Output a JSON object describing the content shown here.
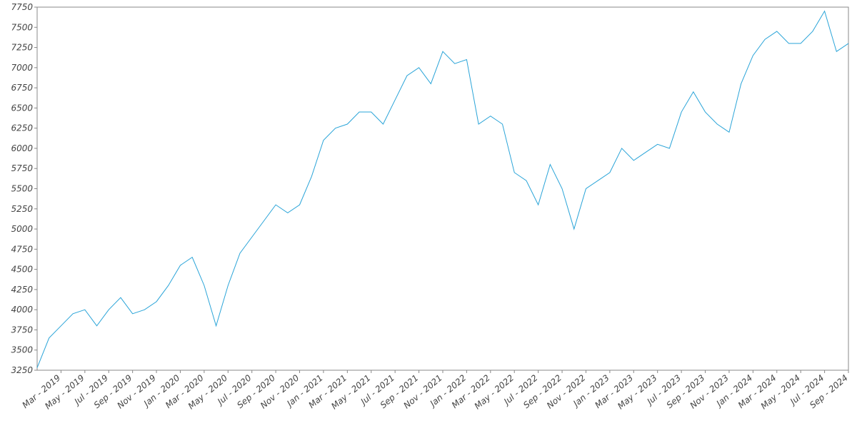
{
  "chart_data": {
    "type": "line",
    "x": [
      "2019-01",
      "2019-02",
      "2019-03",
      "2019-04",
      "2019-05",
      "2019-06",
      "2019-07",
      "2019-08",
      "2019-09",
      "2019-10",
      "2019-11",
      "2019-12",
      "2020-01",
      "2020-02",
      "2020-03",
      "2020-04",
      "2020-05",
      "2020-06",
      "2020-07",
      "2020-08",
      "2020-09",
      "2020-10",
      "2020-11",
      "2020-12",
      "2021-01",
      "2021-02",
      "2021-03",
      "2021-04",
      "2021-05",
      "2021-06",
      "2021-07",
      "2021-08",
      "2021-09",
      "2021-10",
      "2021-11",
      "2021-12",
      "2022-01",
      "2022-02",
      "2022-03",
      "2022-04",
      "2022-05",
      "2022-06",
      "2022-07",
      "2022-08",
      "2022-09",
      "2022-10",
      "2022-11",
      "2022-12",
      "2023-01",
      "2023-02",
      "2023-03",
      "2023-04",
      "2023-05",
      "2023-06",
      "2023-07",
      "2023-08",
      "2023-09",
      "2023-10",
      "2023-11",
      "2023-12",
      "2024-01",
      "2024-02",
      "2024-03",
      "2024-04",
      "2024-05",
      "2024-06",
      "2024-07",
      "2024-08",
      "2024-09"
    ],
    "series": [
      {
        "color": "#2aa4d8",
        "values": [
          3280,
          3650,
          3800,
          3950,
          4000,
          3800,
          4000,
          4150,
          3950,
          4000,
          4100,
          4300,
          4550,
          4650,
          4300,
          3800,
          4300,
          4700,
          4900,
          5100,
          5300,
          5200,
          5300,
          5650,
          6100,
          6250,
          6300,
          6450,
          6450,
          6300,
          6600,
          6900,
          7000,
          6800,
          7200,
          7050,
          7100,
          6300,
          6400,
          6300,
          5700,
          5600,
          5300,
          5800,
          5500,
          5000,
          5500,
          5600,
          5700,
          6000,
          5850,
          5950,
          6050,
          6000,
          6450,
          6700,
          6450,
          6300,
          6200,
          6800,
          7150,
          7350,
          7450,
          7300,
          7300,
          7450,
          7700,
          7200,
          7300
        ]
      }
    ],
    "xlim": [
      "2019-01",
      "2024-09"
    ],
    "xticks": [
      {
        "value": "2019-03",
        "label": "Mar - 2019"
      },
      {
        "value": "2019-05",
        "label": "May - 2019"
      },
      {
        "value": "2019-07",
        "label": "Jul - 2019"
      },
      {
        "value": "2019-09",
        "label": "Sep - 2019"
      },
      {
        "value": "2019-11",
        "label": "Nov - 2019"
      },
      {
        "value": "2020-01",
        "label": "Jan - 2020"
      },
      {
        "value": "2020-03",
        "label": "Mar - 2020"
      },
      {
        "value": "2020-05",
        "label": "May - 2020"
      },
      {
        "value": "2020-07",
        "label": "Jul - 2020"
      },
      {
        "value": "2020-09",
        "label": "Sep - 2020"
      },
      {
        "value": "2020-11",
        "label": "Nov - 2020"
      },
      {
        "value": "2021-01",
        "label": "Jan - 2021"
      },
      {
        "value": "2021-03",
        "label": "Mar - 2021"
      },
      {
        "value": "2021-05",
        "label": "May - 2021"
      },
      {
        "value": "2021-07",
        "label": "Jul - 2021"
      },
      {
        "value": "2021-09",
        "label": "Sep - 2021"
      },
      {
        "value": "2021-11",
        "label": "Nov - 2021"
      },
      {
        "value": "2022-01",
        "label": "Jan - 2022"
      },
      {
        "value": "2022-03",
        "label": "Mar - 2022"
      },
      {
        "value": "2022-05",
        "label": "May - 2022"
      },
      {
        "value": "2022-07",
        "label": "Jul - 2022"
      },
      {
        "value": "2022-09",
        "label": "Sep - 2022"
      },
      {
        "value": "2022-11",
        "label": "Nov - 2022"
      },
      {
        "value": "2023-01",
        "label": "Jan - 2023"
      },
      {
        "value": "2023-03",
        "label": "Mar - 2023"
      },
      {
        "value": "2023-05",
        "label": "May - 2023"
      },
      {
        "value": "2023-07",
        "label": "Jul - 2023"
      },
      {
        "value": "2023-09",
        "label": "Sep - 2023"
      },
      {
        "value": "2023-11",
        "label": "Nov - 2023"
      },
      {
        "value": "2024-01",
        "label": "Jan - 2024"
      },
      {
        "value": "2024-03",
        "label": "Mar - 2024"
      },
      {
        "value": "2024-05",
        "label": "May - 2024"
      },
      {
        "value": "2024-07",
        "label": "Jul - 2024"
      },
      {
        "value": "2024-09",
        "label": "Sep - 2024"
      }
    ],
    "ylim": [
      3250,
      7750
    ],
    "yticks": [
      3250,
      3500,
      3750,
      4000,
      4250,
      4500,
      4750,
      5000,
      5250,
      5500,
      5750,
      6000,
      6250,
      6500,
      6750,
      7000,
      7250,
      7500,
      7750
    ]
  }
}
